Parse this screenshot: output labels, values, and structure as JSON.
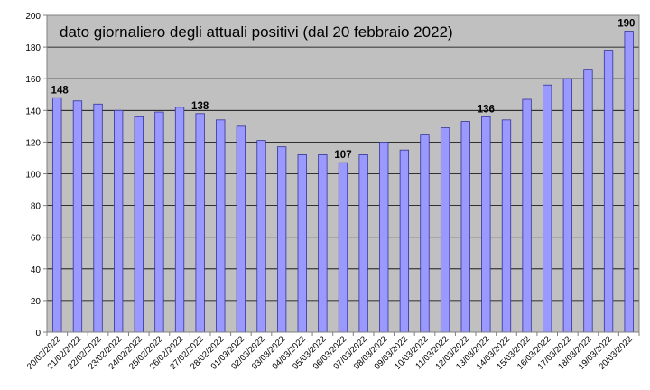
{
  "chart_data": {
    "type": "bar",
    "title": "dato giornaliero degli attuali positivi (dal 20 febbraio 2022)",
    "xlabel": "",
    "ylabel": "",
    "ylim": [
      0,
      200
    ],
    "yticks": [
      0,
      20,
      40,
      60,
      80,
      100,
      120,
      140,
      160,
      180,
      200
    ],
    "grid": true,
    "categories": [
      "20/02/2022",
      "21/02/2022",
      "22/02/2022",
      "23/02/2022",
      "24/02/2022",
      "25/02/2022",
      "26/02/2022",
      "27/02/2022",
      "28/02/2022",
      "01/03/2022",
      "02/03/2022",
      "03/03/2022",
      "04/03/2022",
      "05/03/2022",
      "06/03/2022",
      "07/03/2022",
      "08/03/2022",
      "09/03/2022",
      "10/03/2022",
      "11/03/2022",
      "12/03/2022",
      "13/03/2022",
      "14/03/2022",
      "15/03/2022",
      "16/03/2022",
      "17/03/2022",
      "18/03/2022",
      "19/03/2022",
      "20/03/2022"
    ],
    "values": [
      148,
      146,
      144,
      140,
      136,
      139,
      142,
      138,
      134,
      130,
      121,
      117,
      112,
      112,
      107,
      112,
      120,
      115,
      125,
      129,
      133,
      136,
      134,
      147,
      156,
      160,
      166,
      178,
      190
    ],
    "data_labels": [
      {
        "category": "20/02/2022",
        "text": "148"
      },
      {
        "category": "27/02/2022",
        "text": "138"
      },
      {
        "category": "06/03/2022",
        "text": "107"
      },
      {
        "category": "13/03/2022",
        "text": "136"
      },
      {
        "category": "20/03/2022",
        "text": "190"
      }
    ],
    "colors": {
      "bar_fill": "#9999ff",
      "bar_stroke": "#333399",
      "plot_background": "#c0c0c0",
      "gridline": "#000000",
      "axis": "#808080",
      "background": "#ffffff"
    }
  }
}
